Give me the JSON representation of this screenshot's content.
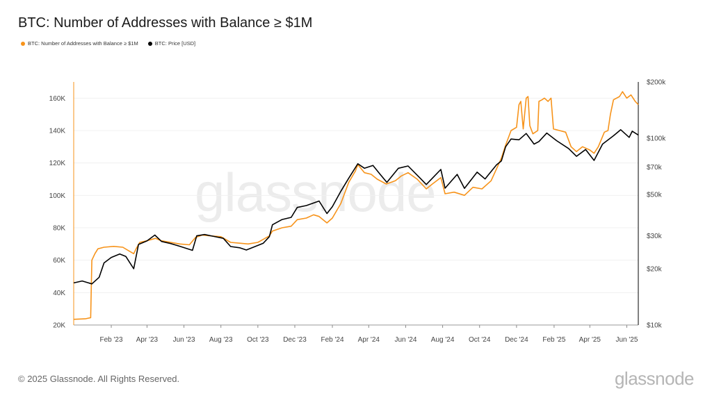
{
  "title": "BTC: Number of Addresses with Balance ≥ $1M",
  "footer": "© 2025 Glassnode. All Rights Reserved.",
  "brand": "glassnode",
  "watermark": "glassnode",
  "chart_data": {
    "type": "line",
    "title": "BTC: Number of Addresses with Balance ≥ $1M",
    "legend_placement": "top-left",
    "grid": true,
    "x_ticks": [
      "Feb '23",
      "Apr '23",
      "Jun '23",
      "Aug '23",
      "Oct '23",
      "Dec '23",
      "Feb '24",
      "Apr '24",
      "Jun '24",
      "Aug '24",
      "Oct '24",
      "Dec '24",
      "Feb '25",
      "Apr '25",
      "Jun '25"
    ],
    "x_range": [
      "2022-12-01",
      "2025-06-20"
    ],
    "y_left": {
      "ticks": [
        "20K",
        "40K",
        "60K",
        "80K",
        "100K",
        "120K",
        "140K",
        "160K"
      ],
      "range": [
        20000,
        170000
      ],
      "scale": "linear"
    },
    "y_right": {
      "ticks": [
        "$10k",
        "$20k",
        "$30k",
        "$50k",
        "$70k",
        "$100k",
        "$200k"
      ],
      "range": [
        10000,
        200000
      ],
      "scale": "log"
    },
    "series": [
      {
        "name": "BTC: Number of Addresses with Balance ≥ $1M",
        "color": "#f7931a",
        "axis": "left",
        "points": [
          [
            "2022-12-01",
            23500
          ],
          [
            "2022-12-20",
            23800
          ],
          [
            "2022-12-29",
            24500
          ],
          [
            "2022-12-31",
            60000
          ],
          [
            "2023-01-05",
            64000
          ],
          [
            "2023-01-10",
            67000
          ],
          [
            "2023-01-20",
            68000
          ],
          [
            "2023-02-05",
            68500
          ],
          [
            "2023-02-20",
            68000
          ],
          [
            "2023-03-01",
            66000
          ],
          [
            "2023-03-10",
            64000
          ],
          [
            "2023-03-14",
            67000
          ],
          [
            "2023-03-20",
            71000
          ],
          [
            "2023-04-01",
            72000
          ],
          [
            "2023-04-15",
            73500
          ],
          [
            "2023-04-25",
            72000
          ],
          [
            "2023-05-10",
            71000
          ],
          [
            "2023-05-25",
            70000
          ],
          [
            "2023-06-10",
            69500
          ],
          [
            "2023-06-20",
            74000
          ],
          [
            "2023-07-01",
            75500
          ],
          [
            "2023-07-15",
            75000
          ],
          [
            "2023-08-01",
            74500
          ],
          [
            "2023-08-17",
            71000
          ],
          [
            "2023-09-01",
            70500
          ],
          [
            "2023-09-15",
            70000
          ],
          [
            "2023-10-01",
            71000
          ],
          [
            "2023-10-20",
            75000
          ],
          [
            "2023-10-25",
            78000
          ],
          [
            "2023-11-10",
            80000
          ],
          [
            "2023-11-25",
            81000
          ],
          [
            "2023-12-05",
            85000
          ],
          [
            "2023-12-20",
            86000
          ],
          [
            "2024-01-01",
            88000
          ],
          [
            "2024-01-10",
            87000
          ],
          [
            "2024-01-23",
            83000
          ],
          [
            "2024-02-01",
            86000
          ],
          [
            "2024-02-15",
            95000
          ],
          [
            "2024-02-28",
            108000
          ],
          [
            "2024-03-10",
            115000
          ],
          [
            "2024-03-14",
            119000
          ],
          [
            "2024-03-25",
            114000
          ],
          [
            "2024-04-05",
            113000
          ],
          [
            "2024-04-15",
            110000
          ],
          [
            "2024-04-30",
            107000
          ],
          [
            "2024-05-15",
            109000
          ],
          [
            "2024-05-25",
            112000
          ],
          [
            "2024-06-05",
            114000
          ],
          [
            "2024-06-20",
            110000
          ],
          [
            "2024-07-05",
            104000
          ],
          [
            "2024-07-15",
            107000
          ],
          [
            "2024-07-29",
            111000
          ],
          [
            "2024-08-05",
            101000
          ],
          [
            "2024-08-20",
            102000
          ],
          [
            "2024-09-06",
            100000
          ],
          [
            "2024-09-20",
            105000
          ],
          [
            "2024-10-05",
            104000
          ],
          [
            "2024-10-20",
            109000
          ],
          [
            "2024-11-06",
            123000
          ],
          [
            "2024-11-13",
            131000
          ],
          [
            "2024-11-22",
            140000
          ],
          [
            "2024-12-01",
            142000
          ],
          [
            "2024-12-05",
            156000
          ],
          [
            "2024-12-08",
            158000
          ],
          [
            "2024-12-12",
            141000
          ],
          [
            "2024-12-17",
            160000
          ],
          [
            "2024-12-20",
            161000
          ],
          [
            "2024-12-23",
            143000
          ],
          [
            "2024-12-28",
            138000
          ],
          [
            "2025-01-05",
            140000
          ],
          [
            "2025-01-07",
            158000
          ],
          [
            "2025-01-12",
            159000
          ],
          [
            "2025-01-16",
            160000
          ],
          [
            "2025-01-22",
            158000
          ],
          [
            "2025-01-27",
            160000
          ],
          [
            "2025-01-31",
            141000
          ],
          [
            "2025-02-10",
            140000
          ],
          [
            "2025-02-20",
            139000
          ],
          [
            "2025-03-01",
            130000
          ],
          [
            "2025-03-10",
            127000
          ],
          [
            "2025-03-20",
            130000
          ],
          [
            "2025-04-01",
            128000
          ],
          [
            "2025-04-08",
            126000
          ],
          [
            "2025-04-15",
            130000
          ],
          [
            "2025-04-25",
            139000
          ],
          [
            "2025-05-01",
            140000
          ],
          [
            "2025-05-05",
            150000
          ],
          [
            "2025-05-10",
            159000
          ],
          [
            "2025-05-20",
            161000
          ],
          [
            "2025-05-25",
            164000
          ],
          [
            "2025-06-01",
            160000
          ],
          [
            "2025-06-08",
            162000
          ],
          [
            "2025-06-15",
            158000
          ],
          [
            "2025-06-20",
            156000
          ]
        ]
      },
      {
        "name": "BTC: Price [USD]",
        "color": "#000000",
        "axis": "right",
        "points": [
          [
            "2022-12-01",
            16800
          ],
          [
            "2022-12-15",
            17200
          ],
          [
            "2022-12-31",
            16600
          ],
          [
            "2023-01-12",
            18000
          ],
          [
            "2023-01-20",
            21500
          ],
          [
            "2023-02-01",
            23000
          ],
          [
            "2023-02-15",
            24000
          ],
          [
            "2023-02-25",
            23300
          ],
          [
            "2023-03-10",
            20000
          ],
          [
            "2023-03-18",
            27000
          ],
          [
            "2023-04-01",
            28200
          ],
          [
            "2023-04-14",
            30300
          ],
          [
            "2023-04-25",
            28000
          ],
          [
            "2023-05-10",
            27300
          ],
          [
            "2023-05-25",
            26400
          ],
          [
            "2023-06-15",
            25100
          ],
          [
            "2023-06-22",
            30000
          ],
          [
            "2023-07-05",
            30500
          ],
          [
            "2023-07-20",
            29800
          ],
          [
            "2023-08-05",
            29100
          ],
          [
            "2023-08-17",
            26300
          ],
          [
            "2023-09-01",
            25900
          ],
          [
            "2023-09-12",
            25200
          ],
          [
            "2023-09-25",
            26200
          ],
          [
            "2023-10-10",
            27400
          ],
          [
            "2023-10-20",
            29700
          ],
          [
            "2023-10-25",
            34400
          ],
          [
            "2023-11-10",
            36700
          ],
          [
            "2023-11-25",
            37700
          ],
          [
            "2023-12-05",
            42600
          ],
          [
            "2023-12-20",
            43600
          ],
          [
            "2024-01-10",
            46100
          ],
          [
            "2024-01-23",
            39500
          ],
          [
            "2024-02-01",
            43000
          ],
          [
            "2024-02-15",
            52000
          ],
          [
            "2024-02-28",
            61000
          ],
          [
            "2024-03-14",
            73000
          ],
          [
            "2024-03-25",
            69000
          ],
          [
            "2024-04-08",
            71500
          ],
          [
            "2024-04-20",
            64000
          ],
          [
            "2024-05-01",
            58000
          ],
          [
            "2024-05-20",
            69000
          ],
          [
            "2024-06-05",
            71000
          ],
          [
            "2024-06-25",
            61000
          ],
          [
            "2024-07-05",
            56500
          ],
          [
            "2024-07-29",
            68000
          ],
          [
            "2024-08-05",
            54000
          ],
          [
            "2024-08-25",
            64000
          ],
          [
            "2024-09-06",
            53900
          ],
          [
            "2024-09-27",
            65800
          ],
          [
            "2024-10-10",
            60500
          ],
          [
            "2024-10-29",
            72000
          ],
          [
            "2024-11-06",
            75600
          ],
          [
            "2024-11-13",
            90000
          ],
          [
            "2024-11-22",
            99000
          ],
          [
            "2024-12-05",
            98000
          ],
          [
            "2024-12-17",
            106000
          ],
          [
            "2024-12-30",
            93000
          ],
          [
            "2025-01-07",
            96000
          ],
          [
            "2025-01-20",
            106500
          ],
          [
            "2025-02-05",
            97000
          ],
          [
            "2025-02-25",
            88000
          ],
          [
            "2025-03-10",
            80000
          ],
          [
            "2025-03-25",
            87000
          ],
          [
            "2025-04-08",
            76000
          ],
          [
            "2025-04-22",
            93000
          ],
          [
            "2025-05-10",
            103000
          ],
          [
            "2025-05-22",
            111000
          ],
          [
            "2025-06-05",
            101000
          ],
          [
            "2025-06-10",
            109000
          ],
          [
            "2025-06-20",
            104000
          ]
        ]
      }
    ]
  }
}
